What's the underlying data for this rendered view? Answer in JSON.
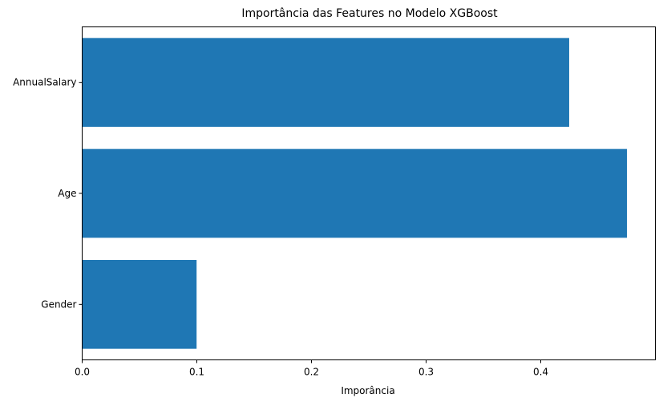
{
  "chart_data": {
    "type": "bar",
    "orientation": "horizontal",
    "title": "Importância das Features no Modelo XGBoost",
    "xlabel": "Imporância",
    "ylabel": "",
    "categories": [
      "AnnualSalary",
      "Age",
      "Gender"
    ],
    "values": [
      0.4248,
      0.4752,
      0.0998
    ],
    "xlim": [
      0.0,
      0.5
    ],
    "xticks": [
      0.0,
      0.1,
      0.2,
      0.3,
      0.4
    ],
    "xtick_labels": [
      "0.0",
      "0.1",
      "0.2",
      "0.3",
      "0.4"
    ],
    "grid": false,
    "legend": "none",
    "colors": {
      "bar": "#1f77b4",
      "axis": "#000000",
      "background": "#ffffff"
    }
  }
}
